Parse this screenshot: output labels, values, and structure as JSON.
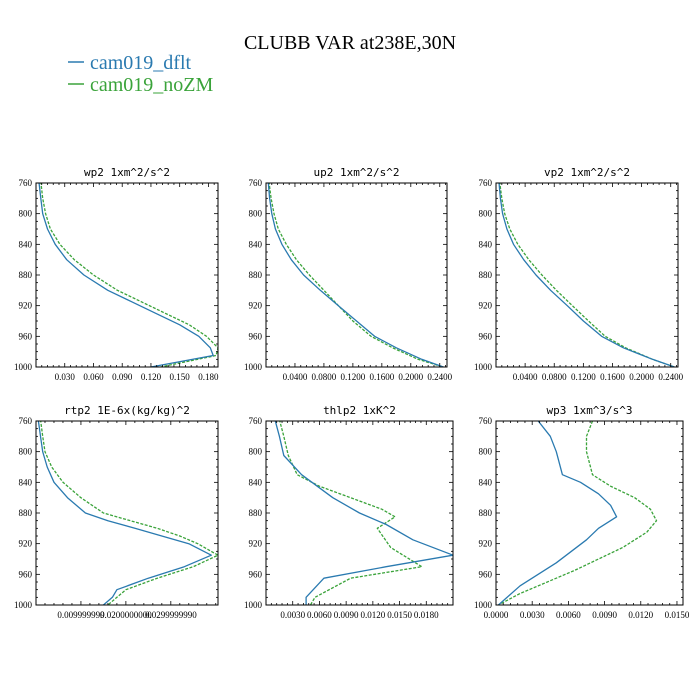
{
  "figure": {
    "title": "CLUBB VAR at238E,30N",
    "legend": [
      {
        "name": "cam019_dflt",
        "color": "#2a7ab0"
      },
      {
        "name": "cam019_noZM",
        "color": "#3aa33a"
      }
    ]
  },
  "chart_data": [
    {
      "type": "line",
      "title": "wp2   1xm^2/s^2",
      "xlim": [
        0.0,
        0.19
      ],
      "ylim": [
        760,
        1000
      ],
      "y_inverted": true,
      "xticks": [
        0.03,
        0.06,
        0.09,
        0.12,
        0.15,
        0.18
      ],
      "xtick_labels": [
        "0.030",
        "0.060",
        "0.090",
        "0.120",
        "0.150",
        "0.180"
      ],
      "yticks": [
        760,
        800,
        840,
        880,
        920,
        960,
        1000
      ],
      "ytick_labels": [
        "760",
        "800",
        "840",
        "880",
        "920",
        "960",
        "1000"
      ],
      "series": [
        {
          "name": "cam019_dflt",
          "x": [
            0.003,
            0.005,
            0.007,
            0.012,
            0.02,
            0.032,
            0.05,
            0.075,
            0.1,
            0.125,
            0.15,
            0.17,
            0.182,
            0.185,
            0.12
          ],
          "y": [
            758,
            780,
            800,
            820,
            840,
            860,
            880,
            900,
            915,
            930,
            945,
            960,
            975,
            985,
            1000
          ]
        },
        {
          "name": "cam019_noZM",
          "x": [
            0.005,
            0.007,
            0.01,
            0.015,
            0.025,
            0.04,
            0.06,
            0.085,
            0.11,
            0.135,
            0.16,
            0.178,
            0.19,
            0.188,
            0.13
          ],
          "y": [
            758,
            780,
            800,
            820,
            840,
            860,
            880,
            900,
            915,
            930,
            945,
            960,
            975,
            985,
            1000
          ]
        }
      ]
    },
    {
      "type": "line",
      "title": "up2   1xm^2/s^2",
      "xlim": [
        0.0,
        0.25
      ],
      "ylim": [
        760,
        1000
      ],
      "y_inverted": true,
      "xticks": [
        0.04,
        0.08,
        0.12,
        0.16,
        0.2,
        0.24
      ],
      "xtick_labels": [
        "0.0400",
        "0.0800",
        "0.1200",
        "0.1600",
        "0.2000",
        "0.2400"
      ],
      "yticks": [
        760,
        800,
        840,
        880,
        920,
        960,
        1000
      ],
      "ytick_labels": [
        "760",
        "800",
        "840",
        "880",
        "920",
        "960",
        "1000"
      ],
      "series": [
        {
          "name": "cam019_dflt",
          "x": [
            0.003,
            0.005,
            0.008,
            0.013,
            0.022,
            0.035,
            0.052,
            0.075,
            0.1,
            0.125,
            0.15,
            0.18,
            0.215,
            0.245
          ],
          "y": [
            758,
            780,
            800,
            820,
            840,
            860,
            880,
            900,
            920,
            940,
            960,
            975,
            990,
            1000
          ]
        },
        {
          "name": "cam019_noZM",
          "x": [
            0.004,
            0.007,
            0.011,
            0.017,
            0.028,
            0.042,
            0.06,
            0.08,
            0.1,
            0.12,
            0.145,
            0.175,
            0.21,
            0.245
          ],
          "y": [
            758,
            780,
            800,
            820,
            840,
            860,
            880,
            900,
            920,
            940,
            960,
            975,
            990,
            1000
          ]
        }
      ]
    },
    {
      "type": "line",
      "title": "vp2   1xm^2/s^2",
      "xlim": [
        0.0,
        0.25
      ],
      "ylim": [
        760,
        1000
      ],
      "y_inverted": true,
      "xticks": [
        0.04,
        0.08,
        0.12,
        0.16,
        0.2,
        0.24
      ],
      "xtick_labels": [
        "0.0400",
        "0.0800",
        "0.1200",
        "0.1600",
        "0.2000",
        "0.2400"
      ],
      "yticks": [
        760,
        800,
        840,
        880,
        920,
        960,
        1000
      ],
      "ytick_labels": [
        "760",
        "800",
        "840",
        "880",
        "920",
        "960",
        "1000"
      ],
      "series": [
        {
          "name": "cam019_dflt",
          "x": [
            0.004,
            0.006,
            0.009,
            0.015,
            0.024,
            0.038,
            0.055,
            0.075,
            0.098,
            0.12,
            0.145,
            0.175,
            0.215,
            0.245
          ],
          "y": [
            758,
            780,
            800,
            820,
            840,
            860,
            880,
            900,
            920,
            940,
            960,
            975,
            990,
            1000
          ]
        },
        {
          "name": "cam019_noZM",
          "x": [
            0.005,
            0.008,
            0.012,
            0.019,
            0.03,
            0.045,
            0.063,
            0.083,
            0.105,
            0.127,
            0.15,
            0.178,
            0.215,
            0.245
          ],
          "y": [
            758,
            780,
            800,
            820,
            840,
            860,
            880,
            900,
            920,
            940,
            960,
            975,
            990,
            1000
          ]
        }
      ]
    },
    {
      "type": "line",
      "title": "rtp2   1E-6x(kg/kg)^2",
      "xlim": [
        0.0,
        0.0405
      ],
      "ylim": [
        760,
        1000
      ],
      "y_inverted": true,
      "xticks": [
        0.01,
        0.02,
        0.03
      ],
      "xtick_labels": [
        "0.009999999",
        "0.0200000000",
        "0.0299999990"
      ],
      "yticks": [
        760,
        800,
        840,
        880,
        920,
        960,
        1000
      ],
      "ytick_labels": [
        "760",
        "800",
        "840",
        "880",
        "920",
        "960",
        "1000"
      ],
      "series": [
        {
          "name": "cam019_dflt",
          "x": [
            0.0005,
            0.001,
            0.0015,
            0.0025,
            0.004,
            0.007,
            0.011,
            0.016,
            0.022,
            0.028,
            0.034,
            0.039,
            0.033,
            0.025,
            0.018,
            0.017,
            0.015
          ],
          "y": [
            758,
            780,
            800,
            820,
            840,
            860,
            880,
            890,
            900,
            910,
            920,
            935,
            950,
            965,
            980,
            990,
            1000
          ]
        },
        {
          "name": "cam019_noZM",
          "x": [
            0.001,
            0.0015,
            0.002,
            0.0035,
            0.006,
            0.01,
            0.015,
            0.021,
            0.027,
            0.032,
            0.036,
            0.0405,
            0.035,
            0.027,
            0.02,
            0.018,
            0.016
          ],
          "y": [
            758,
            780,
            800,
            820,
            840,
            860,
            880,
            890,
            900,
            910,
            920,
            935,
            950,
            965,
            980,
            990,
            1000
          ]
        }
      ]
    },
    {
      "type": "line",
      "title": "thlp2   1xK^2",
      "xlim": [
        0.0,
        0.021
      ],
      "ylim": [
        760,
        1000
      ],
      "y_inverted": true,
      "xticks": [
        0.003,
        0.006,
        0.009,
        0.012,
        0.015,
        0.018
      ],
      "xtick_labels": [
        "0.0030",
        "0.0060",
        "0.0090",
        "0.0120",
        "0.0150",
        "0.0180"
      ],
      "yticks": [
        760,
        800,
        840,
        880,
        920,
        960,
        1000
      ],
      "ytick_labels": [
        "760",
        "800",
        "840",
        "880",
        "920",
        "960",
        "1000"
      ],
      "series": [
        {
          "name": "cam019_dflt",
          "x": [
            0.001,
            0.0015,
            0.002,
            0.004,
            0.0075,
            0.0105,
            0.0135,
            0.0165,
            0.021,
            0.0135,
            0.0065,
            0.0045,
            0.0045
          ],
          "y": [
            758,
            780,
            805,
            830,
            860,
            880,
            895,
            915,
            935,
            950,
            965,
            990,
            1000
          ]
        },
        {
          "name": "cam019_noZM",
          "x": [
            0.0015,
            0.002,
            0.0025,
            0.0035,
            0.006,
            0.0095,
            0.013,
            0.0145,
            0.0125,
            0.014,
            0.0175,
            0.0095,
            0.0055,
            0.005
          ],
          "y": [
            758,
            780,
            805,
            830,
            845,
            860,
            875,
            885,
            900,
            925,
            950,
            965,
            990,
            1000
          ]
        }
      ]
    },
    {
      "type": "line",
      "title": "wp3   1xm^3/s^3",
      "xlim": [
        0.0,
        0.0155
      ],
      "ylim": [
        760,
        1000
      ],
      "y_inverted": true,
      "xticks": [
        0.0,
        0.003,
        0.006,
        0.009,
        0.012,
        0.015
      ],
      "xtick_labels": [
        "0.0000",
        "0.0030",
        "0.0060",
        "0.0090",
        "0.0120",
        "0.0150"
      ],
      "yticks": [
        760,
        800,
        840,
        880,
        920,
        960,
        1000
      ],
      "ytick_labels": [
        "760",
        "800",
        "840",
        "880",
        "920",
        "960",
        "1000"
      ],
      "series": [
        {
          "name": "cam019_dflt",
          "x": [
            0.0035,
            0.0045,
            0.005,
            0.0055,
            0.007,
            0.0085,
            0.0095,
            0.01,
            0.0085,
            0.0075,
            0.005,
            0.002,
            0.0002
          ],
          "y": [
            760,
            780,
            800,
            830,
            840,
            855,
            870,
            885,
            900,
            915,
            945,
            975,
            1000
          ]
        },
        {
          "name": "cam019_noZM",
          "x": [
            0.008,
            0.0075,
            0.0075,
            0.008,
            0.0095,
            0.0115,
            0.0128,
            0.0133,
            0.0125,
            0.0105,
            0.0065,
            0.002,
            0.0002
          ],
          "y": [
            760,
            780,
            800,
            830,
            845,
            860,
            875,
            890,
            905,
            925,
            955,
            985,
            1000
          ]
        }
      ]
    }
  ]
}
